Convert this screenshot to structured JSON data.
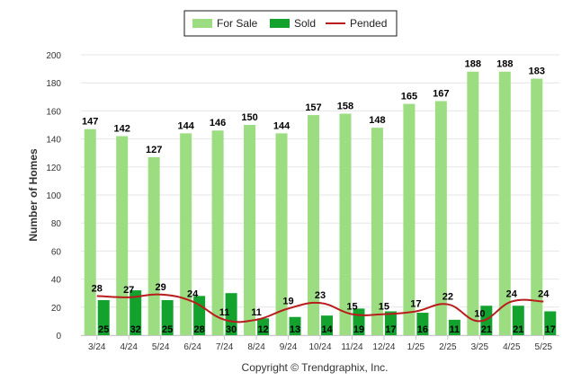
{
  "chart_data": {
    "type": "bar",
    "ylabel": "Number of Homes",
    "ylim": [
      0,
      200
    ],
    "yticks": [
      0,
      20,
      40,
      60,
      80,
      100,
      120,
      140,
      160,
      180,
      200
    ],
    "categories": [
      "3/24",
      "4/24",
      "5/24",
      "6/24",
      "7/24",
      "8/24",
      "9/24",
      "10/24",
      "11/24",
      "12/24",
      "1/25",
      "2/25",
      "3/25",
      "4/25",
      "5/25"
    ],
    "series": [
      {
        "name": "For Sale",
        "type": "bar",
        "color": "#9ddd82",
        "values": [
          147,
          142,
          127,
          144,
          146,
          150,
          144,
          157,
          158,
          148,
          165,
          167,
          188,
          188,
          183
        ]
      },
      {
        "name": "Sold",
        "type": "bar",
        "color": "#14a22e",
        "values": [
          25,
          32,
          25,
          28,
          30,
          12,
          13,
          14,
          19,
          17,
          16,
          11,
          21,
          21,
          17
        ]
      },
      {
        "name": "Pended",
        "type": "line",
        "color": "#b81c1c",
        "values": [
          28,
          27,
          29,
          24,
          11,
          11,
          19,
          23,
          15,
          15,
          17,
          22,
          10,
          24,
          24
        ]
      }
    ],
    "grid": true,
    "legend_position": "top-center",
    "credit": "Copyright © Trendgraphix, Inc."
  }
}
